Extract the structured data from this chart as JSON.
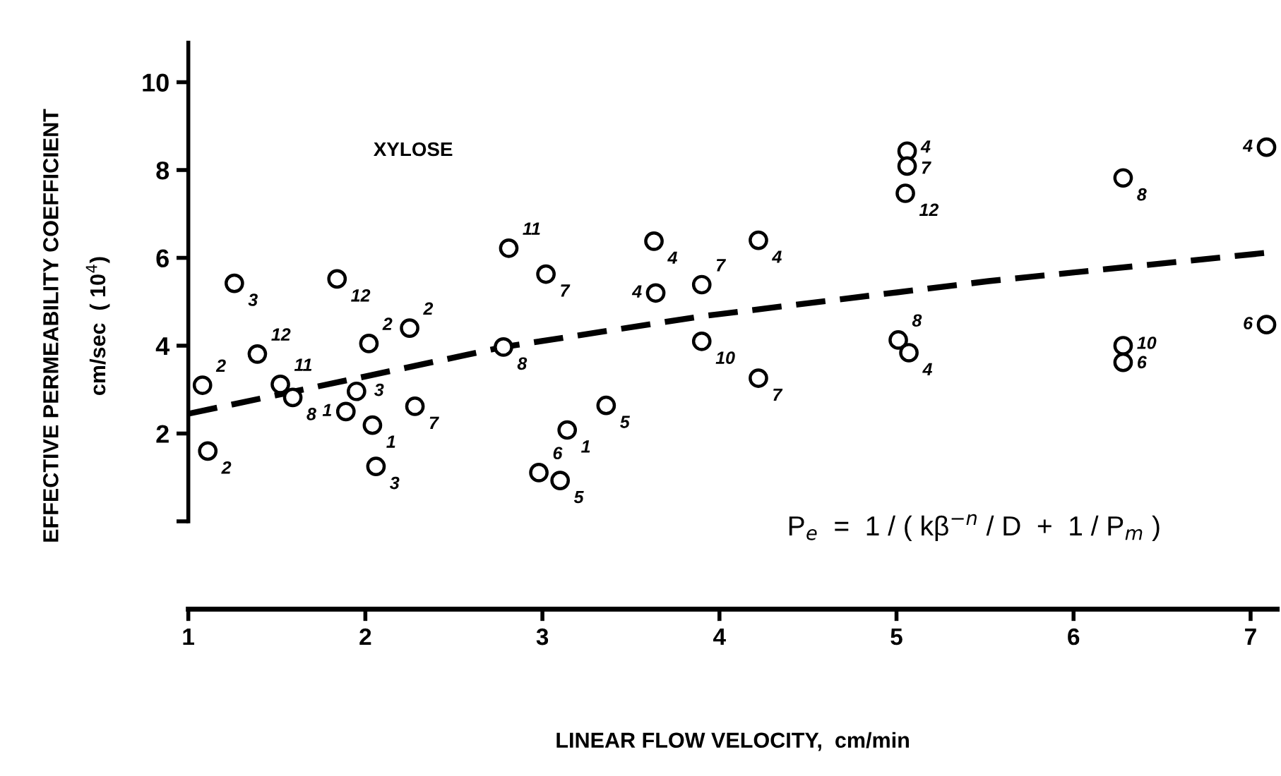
{
  "chart_data": {
    "type": "scatter",
    "xlabel": "LINEAR FLOW VELOCITY,  cm/min",
    "ylabel": "EFFECTIVE PERMEABILITY COEFFICIENT\ncm/sec  ( 10$^{4}$)",
    "xlim": [
      1,
      7.15
    ],
    "ylim": [
      -2.0,
      10.9
    ],
    "xticks": [
      1,
      2,
      3,
      4,
      5,
      6,
      7
    ],
    "yticks": [
      {
        "value": 0,
        "label": null
      },
      2,
      4,
      6,
      8,
      10
    ],
    "grid": false,
    "legend": false,
    "marker": "circle",
    "series": [
      {
        "color": "#000000",
        "x": [
          1.08,
          1.11,
          1.26,
          1.39,
          1.52,
          1.59,
          1.84,
          1.89,
          1.95,
          2.02,
          2.04,
          2.06,
          2.25,
          2.28,
          2.78,
          2.81,
          3.02,
          2.98,
          3.1,
          3.14,
          3.36,
          3.63,
          3.64,
          3.9,
          3.9,
          4.22,
          4.22,
          5.06,
          5.06,
          5.05,
          5.01,
          5.07,
          6.28,
          7.09,
          6.28,
          6.28,
          7.09
        ],
        "values": [
          3.1,
          1.6,
          5.42,
          3.81,
          3.12,
          2.82,
          5.52,
          2.5,
          2.96,
          4.05,
          2.19,
          1.25,
          4.4,
          2.62,
          3.97,
          6.22,
          5.63,
          1.11,
          0.93,
          2.08,
          2.64,
          6.38,
          5.2,
          5.39,
          4.1,
          6.4,
          3.26,
          8.43,
          8.09,
          7.47,
          4.13,
          3.84,
          7.82,
          8.52,
          4.0,
          3.62,
          4.48
        ]
      },
      {
        "type": "line",
        "color": "#000000",
        "line_style": "dashed",
        "marker": "none",
        "x": [
          1,
          2,
          2.78,
          3.9,
          5.52,
          7.15
        ],
        "values": [
          2.45,
          3.3,
          3.97,
          4.67,
          5.47,
          6.14
        ]
      }
    ],
    "annotations": [
      {
        "text": "2",
        "x": 1.08,
        "y": 3.1
      },
      {
        "text": "2",
        "x": 1.11,
        "y": 1.6
      },
      {
        "text": "3",
        "x": 1.26,
        "y": 5.42
      },
      {
        "text": "12",
        "x": 1.39,
        "y": 3.81
      },
      {
        "text": "11",
        "x": 1.52,
        "y": 3.12
      },
      {
        "text": "8",
        "x": 1.59,
        "y": 2.82
      },
      {
        "text": "12",
        "x": 1.84,
        "y": 5.52
      },
      {
        "text": "1",
        "x": 1.89,
        "y": 2.5
      },
      {
        "text": "3",
        "x": 1.95,
        "y": 2.96
      },
      {
        "text": "2",
        "x": 2.02,
        "y": 4.05
      },
      {
        "text": "1",
        "x": 2.04,
        "y": 2.19
      },
      {
        "text": "3",
        "x": 2.06,
        "y": 1.25
      },
      {
        "text": "2",
        "x": 2.25,
        "y": 4.4
      },
      {
        "text": "7",
        "x": 2.28,
        "y": 2.62
      },
      {
        "text": "8",
        "x": 2.78,
        "y": 3.97
      },
      {
        "text": "11",
        "x": 2.81,
        "y": 6.22
      },
      {
        "text": "7",
        "x": 3.02,
        "y": 5.63
      },
      {
        "text": "6",
        "x": 2.98,
        "y": 1.11
      },
      {
        "text": "5",
        "x": 3.1,
        "y": 0.93
      },
      {
        "text": "1",
        "x": 3.14,
        "y": 2.08
      },
      {
        "text": "5",
        "x": 3.36,
        "y": 2.64
      },
      {
        "text": "4",
        "x": 3.63,
        "y": 6.38
      },
      {
        "text": "4",
        "x": 3.64,
        "y": 5.2
      },
      {
        "text": "7",
        "x": 3.9,
        "y": 5.39
      },
      {
        "text": "10",
        "x": 3.9,
        "y": 4.1
      },
      {
        "text": "4",
        "x": 4.22,
        "y": 6.4
      },
      {
        "text": "7",
        "x": 4.22,
        "y": 3.26
      },
      {
        "text": "7",
        "x": 5.06,
        "y": 8.43
      },
      {
        "text": "4",
        "x": 5.06,
        "y": 8.09
      },
      {
        "text": "12",
        "x": 5.05,
        "y": 7.47
      },
      {
        "text": "8",
        "x": 5.01,
        "y": 4.13
      },
      {
        "text": "4",
        "x": 5.07,
        "y": 3.84
      },
      {
        "text": "8",
        "x": 6.28,
        "y": 7.82
      },
      {
        "text": "4",
        "x": 7.09,
        "y": 8.52
      },
      {
        "text": "6",
        "x": 6.28,
        "y": 4.0
      },
      {
        "text": "10",
        "x": 6.28,
        "y": 3.62
      },
      {
        "text": "6",
        "x": 7.09,
        "y": 4.48
      },
      "XYLOSE",
      "P$_{e}$  =  1 / ( kβ$^{−n}$ / D  +  1 / P$_{m}$ )"
    ]
  }
}
